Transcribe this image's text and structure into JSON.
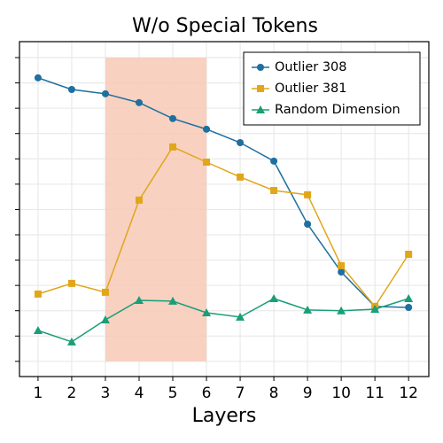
{
  "chart_data": {
    "type": "line",
    "title": "W/o Special Tokens",
    "x_label": "Layers",
    "x": [
      1,
      2,
      3,
      4,
      5,
      6,
      7,
      8,
      9,
      10,
      11,
      12
    ],
    "xlim": [
      0.45,
      12.6
    ],
    "xticks": [
      1,
      2,
      3,
      4,
      5,
      6,
      7,
      8,
      9,
      10,
      11,
      12
    ],
    "ylim": [
      -0.6,
      12.63
    ],
    "yticks": [
      0,
      1,
      2,
      3,
      4,
      5,
      6,
      7,
      8,
      9,
      10,
      11,
      12
    ],
    "grid": true,
    "legend": "upper right",
    "shade": {
      "xlim": [
        3,
        6
      ],
      "ylim": [
        0,
        12
      ],
      "color": "#f7c9b6"
    },
    "series": [
      {
        "name": "Outlier 308",
        "color": "#1f6f9f",
        "marker": "circle",
        "values": [
          11.2,
          10.74,
          10.57,
          10.22,
          9.59,
          9.17,
          8.64,
          7.91,
          5.42,
          3.53,
          2.17,
          2.13
        ]
      },
      {
        "name": "Outlier 381",
        "color": "#e1a61a",
        "marker": "square",
        "values": [
          2.66,
          3.08,
          2.73,
          6.37,
          8.47,
          7.87,
          7.28,
          6.75,
          6.58,
          3.78,
          2.17,
          4.23
        ]
      },
      {
        "name": "Random Dimension",
        "color": "#1a9e77",
        "marker": "triangle",
        "values": [
          1.22,
          0.77,
          1.64,
          2.41,
          2.38,
          1.92,
          1.75,
          2.48,
          2.03,
          2.0,
          2.06,
          2.48
        ]
      }
    ]
  }
}
